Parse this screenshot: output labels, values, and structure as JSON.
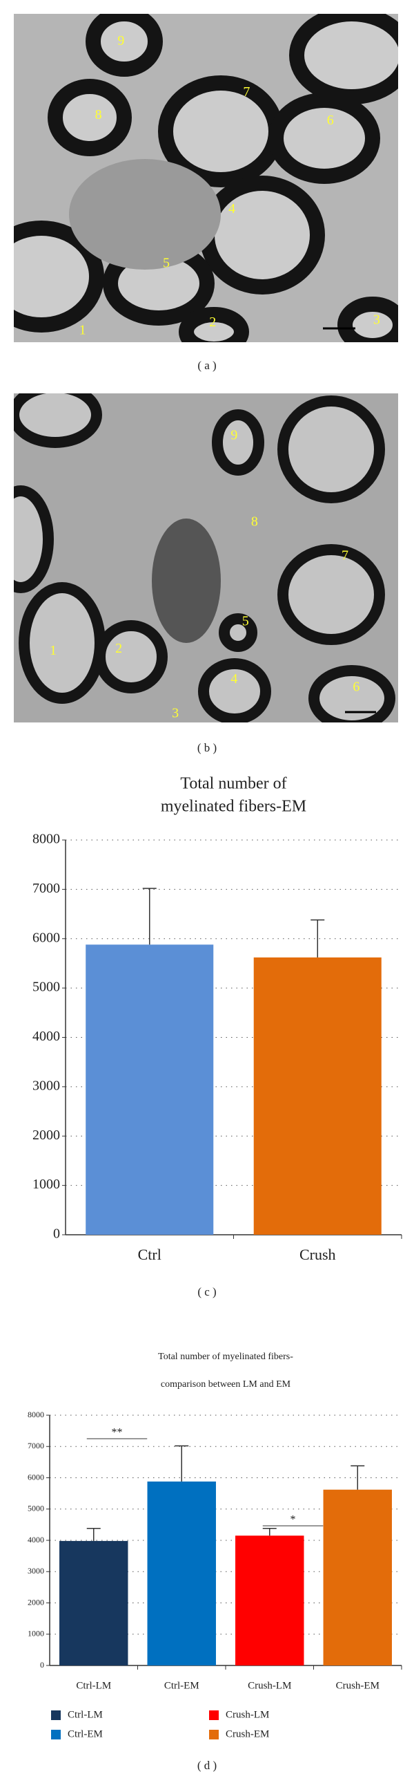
{
  "micrographs": [
    {
      "label": "( a )",
      "markers": [
        "9",
        "8",
        "7",
        "6",
        "4",
        "5",
        "1",
        "2",
        "3"
      ]
    },
    {
      "label": "( b )",
      "markers": [
        "9",
        "8",
        "7",
        "1",
        "2",
        "5",
        "4",
        "3",
        "6"
      ]
    }
  ],
  "chart_data": [
    {
      "type": "bar",
      "title": [
        "Total number of",
        "myelinated fibers-EM"
      ],
      "panel_label": "( c )",
      "categories": [
        "Ctrl",
        "Crush"
      ],
      "values": [
        5880,
        5620
      ],
      "errors": [
        1140,
        760
      ],
      "colors": [
        "#5b8fd6",
        "#e36c0a"
      ],
      "ylim": [
        0,
        8000
      ],
      "yticks": [
        0,
        1000,
        2000,
        3000,
        4000,
        5000,
        6000,
        7000,
        8000
      ],
      "grid": true
    },
    {
      "type": "bar",
      "title": [
        "Total number of myelinated fibers-",
        "comparison between LM and EM"
      ],
      "panel_label": "( d )",
      "categories": [
        "Ctrl-LM",
        "Ctrl-EM",
        "Crush-LM",
        "Crush-EM"
      ],
      "values": [
        3980,
        5880,
        4150,
        5620
      ],
      "errors": [
        400,
        1140,
        230,
        760
      ],
      "colors": [
        "#17375e",
        "#0070c0",
        "#ff0000",
        "#e36c0a"
      ],
      "annotations": [
        "**",
        "*"
      ],
      "ylim": [
        0,
        8000
      ],
      "yticks": [
        0,
        1000,
        2000,
        3000,
        4000,
        5000,
        6000,
        7000,
        8000
      ],
      "grid": true,
      "legend": "bottom"
    }
  ]
}
